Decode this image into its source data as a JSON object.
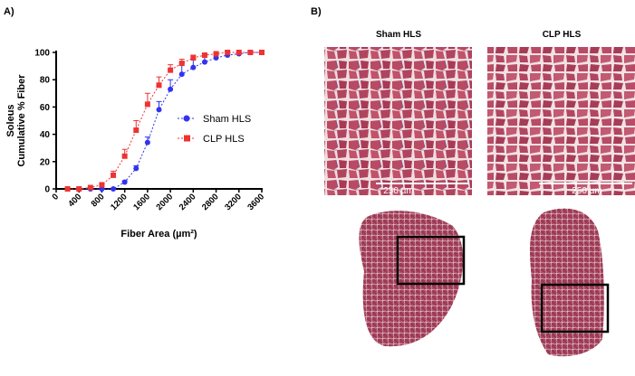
{
  "panel_a_label": "A)",
  "panel_b_label": "B)",
  "chart_data": {
    "type": "line",
    "y_label": [
      "Soleus",
      "Cumulative % Fiber"
    ],
    "x_label": "Fiber Area (µm²)",
    "x": [
      200,
      400,
      600,
      800,
      1000,
      1200,
      1400,
      1600,
      1800,
      2000,
      2200,
      2400,
      2600,
      2800,
      3000,
      3200,
      3400,
      3600
    ],
    "series": [
      {
        "name": "Sham HLS",
        "color": "#3333ee",
        "marker": "circle",
        "values": [
          0,
          0,
          0,
          0,
          0,
          5,
          15,
          34,
          58,
          73,
          84,
          89,
          93,
          96,
          98,
          99,
          100,
          100
        ],
        "errors": [
          0,
          0,
          0,
          0,
          0,
          1,
          2,
          4,
          6,
          7,
          8,
          6,
          5,
          3,
          2,
          1,
          1,
          0
        ]
      },
      {
        "name": "CLP HLS",
        "color": "#ee3333",
        "marker": "square",
        "values": [
          0,
          0,
          1,
          3,
          10,
          24,
          43,
          62,
          76,
          87,
          92,
          96,
          98,
          99,
          100,
          100,
          100,
          100
        ],
        "errors": [
          0,
          0,
          0,
          1,
          3,
          5,
          7,
          8,
          6,
          4,
          3,
          2,
          1,
          1,
          1,
          0,
          0,
          0
        ]
      }
    ],
    "xlim": [
      0,
      3600
    ],
    "xticks": [
      0,
      400,
      800,
      1200,
      1600,
      2000,
      2400,
      2800,
      3200,
      3600
    ],
    "ylim": [
      0,
      100
    ],
    "yticks": [
      0,
      20,
      40,
      60,
      80,
      100
    ]
  },
  "histology": {
    "columns": [
      "Sham HLS",
      "CLP HLS"
    ],
    "scale_bars": [
      "250 µm",
      "250 µm"
    ]
  }
}
